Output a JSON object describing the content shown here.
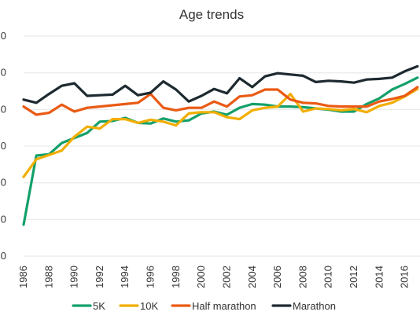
{
  "chart_data": {
    "type": "line",
    "title": "Age trends",
    "xlabel": "",
    "ylabel": "",
    "x": [
      1986,
      1987,
      1988,
      1989,
      1990,
      1991,
      1992,
      1993,
      1994,
      1995,
      1996,
      1997,
      1998,
      1999,
      2000,
      2001,
      2002,
      2003,
      2004,
      2005,
      2006,
      2007,
      2008,
      2009,
      2010,
      2011,
      2012,
      2013,
      2014,
      2015,
      2016,
      2017
    ],
    "xticks": [
      "1986",
      "1988",
      "1990",
      "1992",
      "1994",
      "1996",
      "1998",
      "2000",
      "2002",
      "2004",
      "2006",
      "2008",
      "2010",
      "2012",
      "2014",
      "2016"
    ],
    "yticks": [
      "0",
      "0",
      "0",
      "0",
      "0",
      "0",
      "0"
    ],
    "grid": true,
    "legend_position": "bottom",
    "series": [
      {
        "name": "5K",
        "color": "#14a06a",
        "values": [
          20,
          31,
          31.2,
          33,
          33.8,
          34.6,
          36.4,
          36.5,
          37,
          36.2,
          36.1,
          36.9,
          36.4,
          36.6,
          37.7,
          38,
          37.5,
          38.6,
          39.2,
          39.1,
          38.8,
          38.8,
          38.7,
          38.5,
          38.3,
          38,
          38,
          39.2,
          40.1,
          41.5,
          42.4,
          43.4
        ]
      },
      {
        "name": "10K",
        "color": "#f2ae00",
        "values": [
          27.6,
          30.4,
          31.1,
          31.8,
          34,
          35.6,
          35.3,
          36.8,
          36.8,
          36.2,
          36.7,
          36.4,
          35.8,
          37.7,
          37.9,
          37.9,
          37.1,
          36.8,
          38.2,
          38.6,
          38.8,
          40.8,
          38,
          38.5,
          38.4,
          38.2,
          38.4,
          37.9,
          38.9,
          39.4,
          40.4,
          41.6
        ]
      },
      {
        "name": "Half marathon",
        "color": "#ea5a14",
        "values": [
          38.8,
          37.5,
          37.8,
          39.1,
          38,
          38.6,
          38.8,
          39,
          39.2,
          39.4,
          40.8,
          38.6,
          38.2,
          38.6,
          38.6,
          39.6,
          38.8,
          40.4,
          40.6,
          41.5,
          41.5,
          39.9,
          39.4,
          39.3,
          38.9,
          38.8,
          38.8,
          38.8,
          39.6,
          40,
          40.5,
          41.9
        ]
      },
      {
        "name": "Marathon",
        "color": "#1d2a30",
        "values": [
          39.9,
          39.4,
          40.8,
          42.1,
          42.5,
          40.5,
          40.6,
          40.7,
          42.1,
          40.6,
          41,
          42.8,
          41.5,
          39.6,
          40.5,
          41.6,
          40.9,
          43.3,
          41.9,
          43.6,
          44.1,
          43.9,
          43.7,
          42.7,
          42.9,
          42.8,
          42.6,
          43.1,
          43.2,
          43.4,
          44.4,
          45.2
        ]
      }
    ],
    "ylim": [
      15,
      50
    ]
  }
}
